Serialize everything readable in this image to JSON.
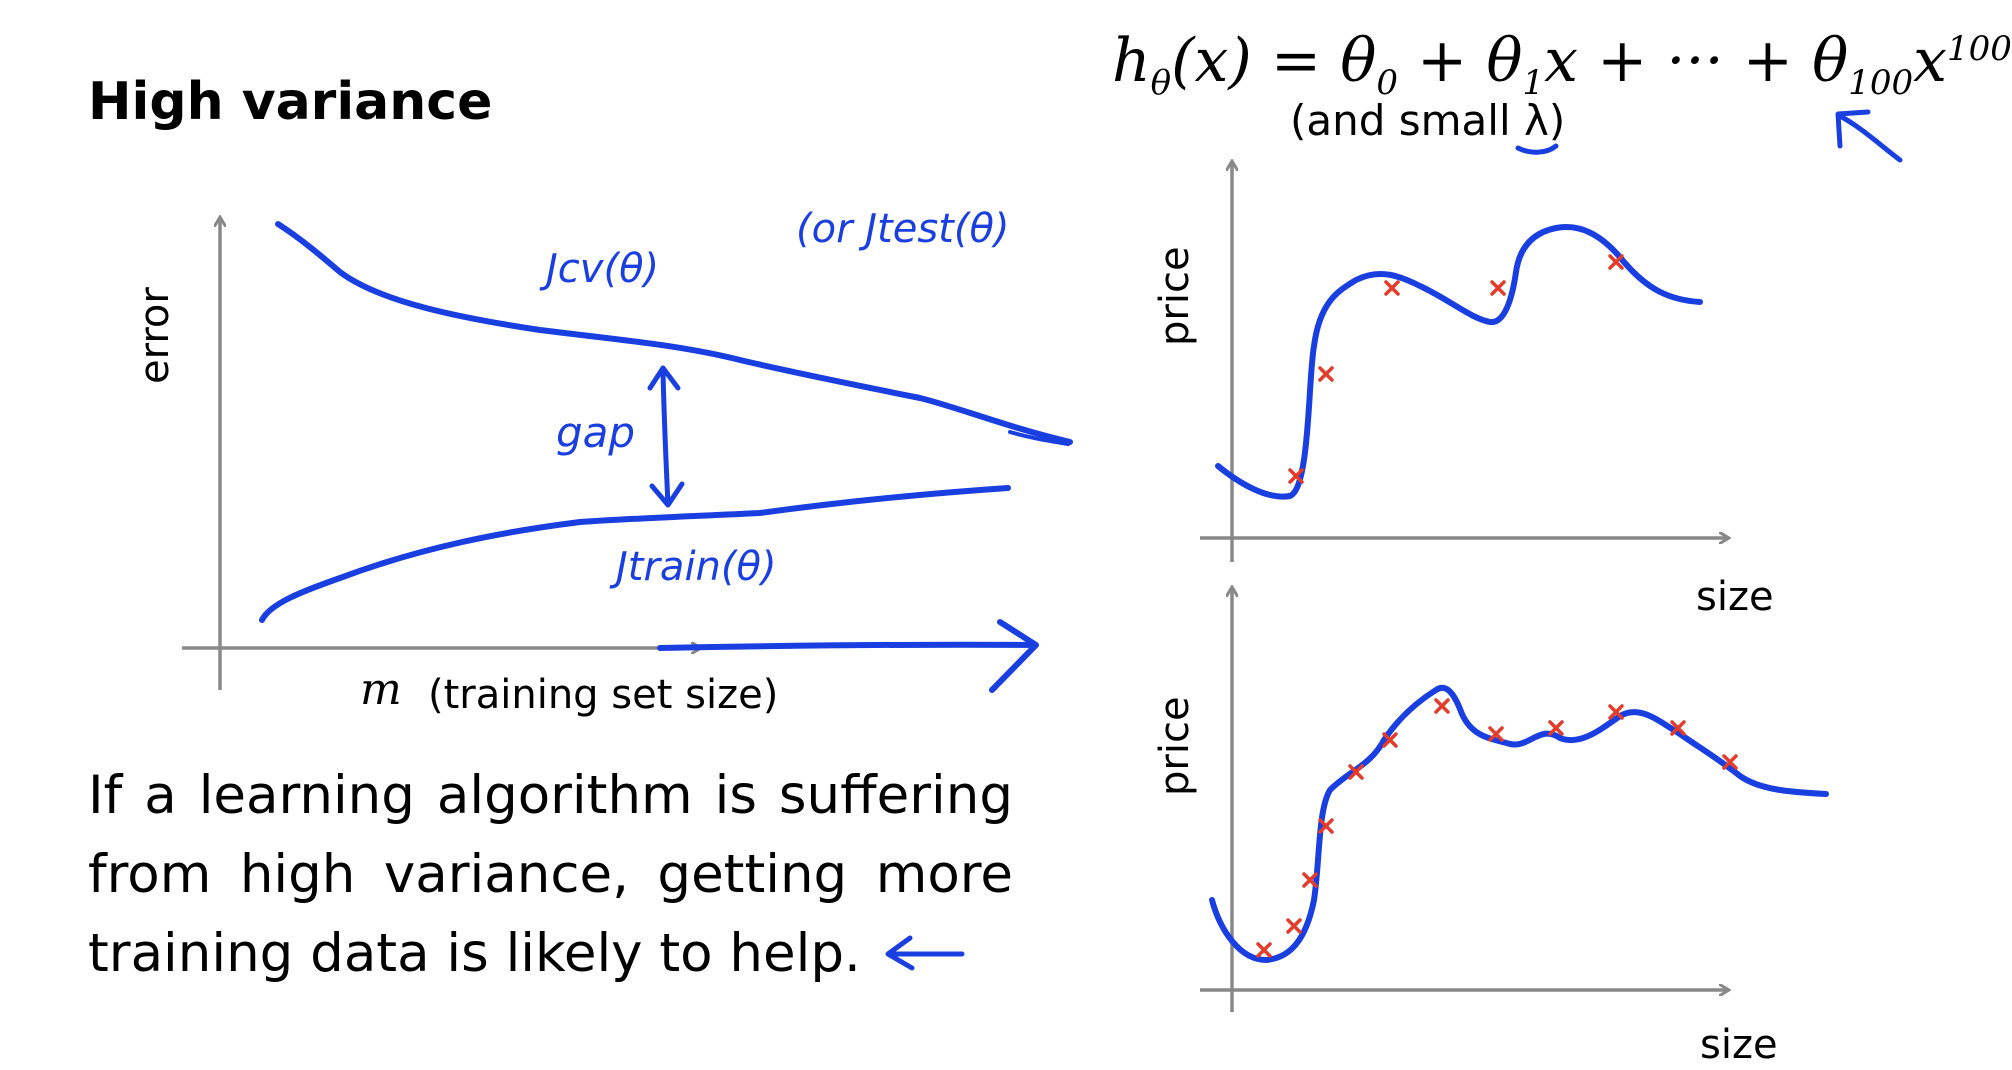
{
  "slide": {
    "title": "High variance",
    "formula": "hθ(x) = θ0 + θ1x + ··· + θ100x100",
    "formula_parts": {
      "h": "h",
      "h_sub": "θ",
      "rest": "(x) = θ",
      "s0": "0",
      "p1": " + θ",
      "s1": "1",
      "p2": "x + ··· + θ",
      "s100": "100",
      "x": "x",
      "sup100": "100"
    },
    "formula_note": "(and small λ)",
    "body_text": "If a learning algorithm is suffering from high variance, getting more training data is likely to help."
  },
  "learning_curve": {
    "ylabel": "error",
    "xlabel_symbol": "m",
    "xlabel": "(training set size)",
    "annotations": {
      "cv": "Jcv(θ)",
      "test": "(or Jtest(θ)",
      "gap": "gap",
      "train": "Jtrain(θ)"
    }
  },
  "fit_plots": {
    "top": {
      "ylabel": "price",
      "xlabel": "size"
    },
    "bottom": {
      "ylabel": "price",
      "xlabel": "size"
    }
  },
  "colors": {
    "ink": "#1a3fe0",
    "marker": "#e53b2a",
    "axis": "#888888",
    "text": "#000000"
  }
}
